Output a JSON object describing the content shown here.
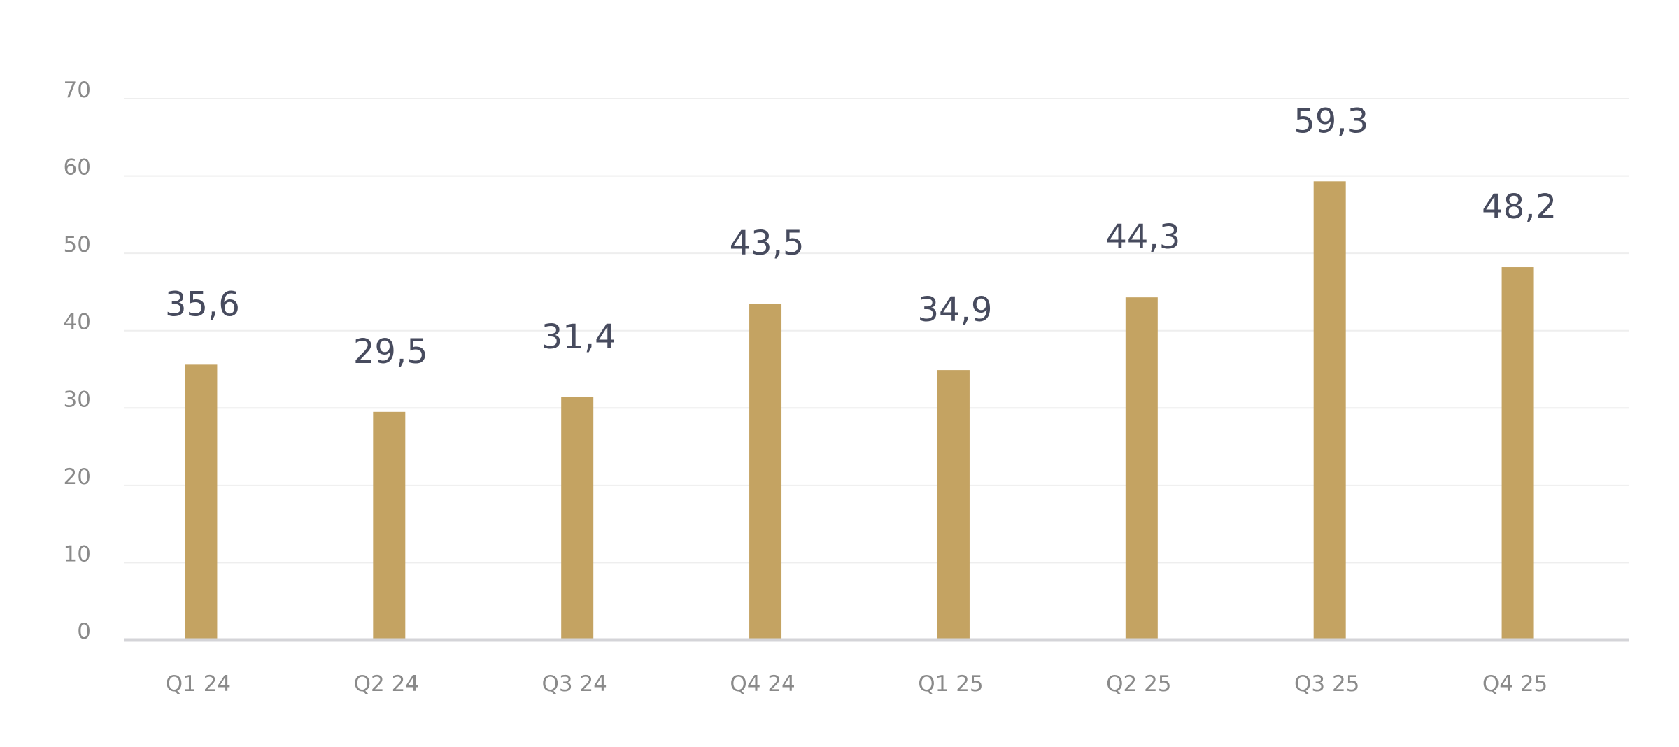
{
  "chart_data": {
    "type": "bar",
    "categories": [
      "Q1 24",
      "Q2 24",
      "Q3 24",
      "Q4 24",
      "Q1 25",
      "Q2 25",
      "Q3 25",
      "Q4 25"
    ],
    "values": [
      35.6,
      29.5,
      31.4,
      43.5,
      34.9,
      44.3,
      59.3,
      48.2
    ],
    "data_labels": [
      "35,6",
      "29,5",
      "31,4",
      "43,5",
      "34,9",
      "44,3",
      "59,3",
      "48,2"
    ],
    "title": "",
    "xlabel": "",
    "ylabel": "",
    "ylim": [
      0,
      70
    ],
    "yticks": [
      0,
      10,
      20,
      30,
      40,
      50,
      60,
      70
    ],
    "grid": true,
    "legend": "none",
    "colors": {
      "bar": "#c4a362",
      "data_label": "#474b5e",
      "tick_label": "#8a8a8a",
      "grid": "#eeeeee",
      "axis": "#d4d4d8"
    }
  }
}
